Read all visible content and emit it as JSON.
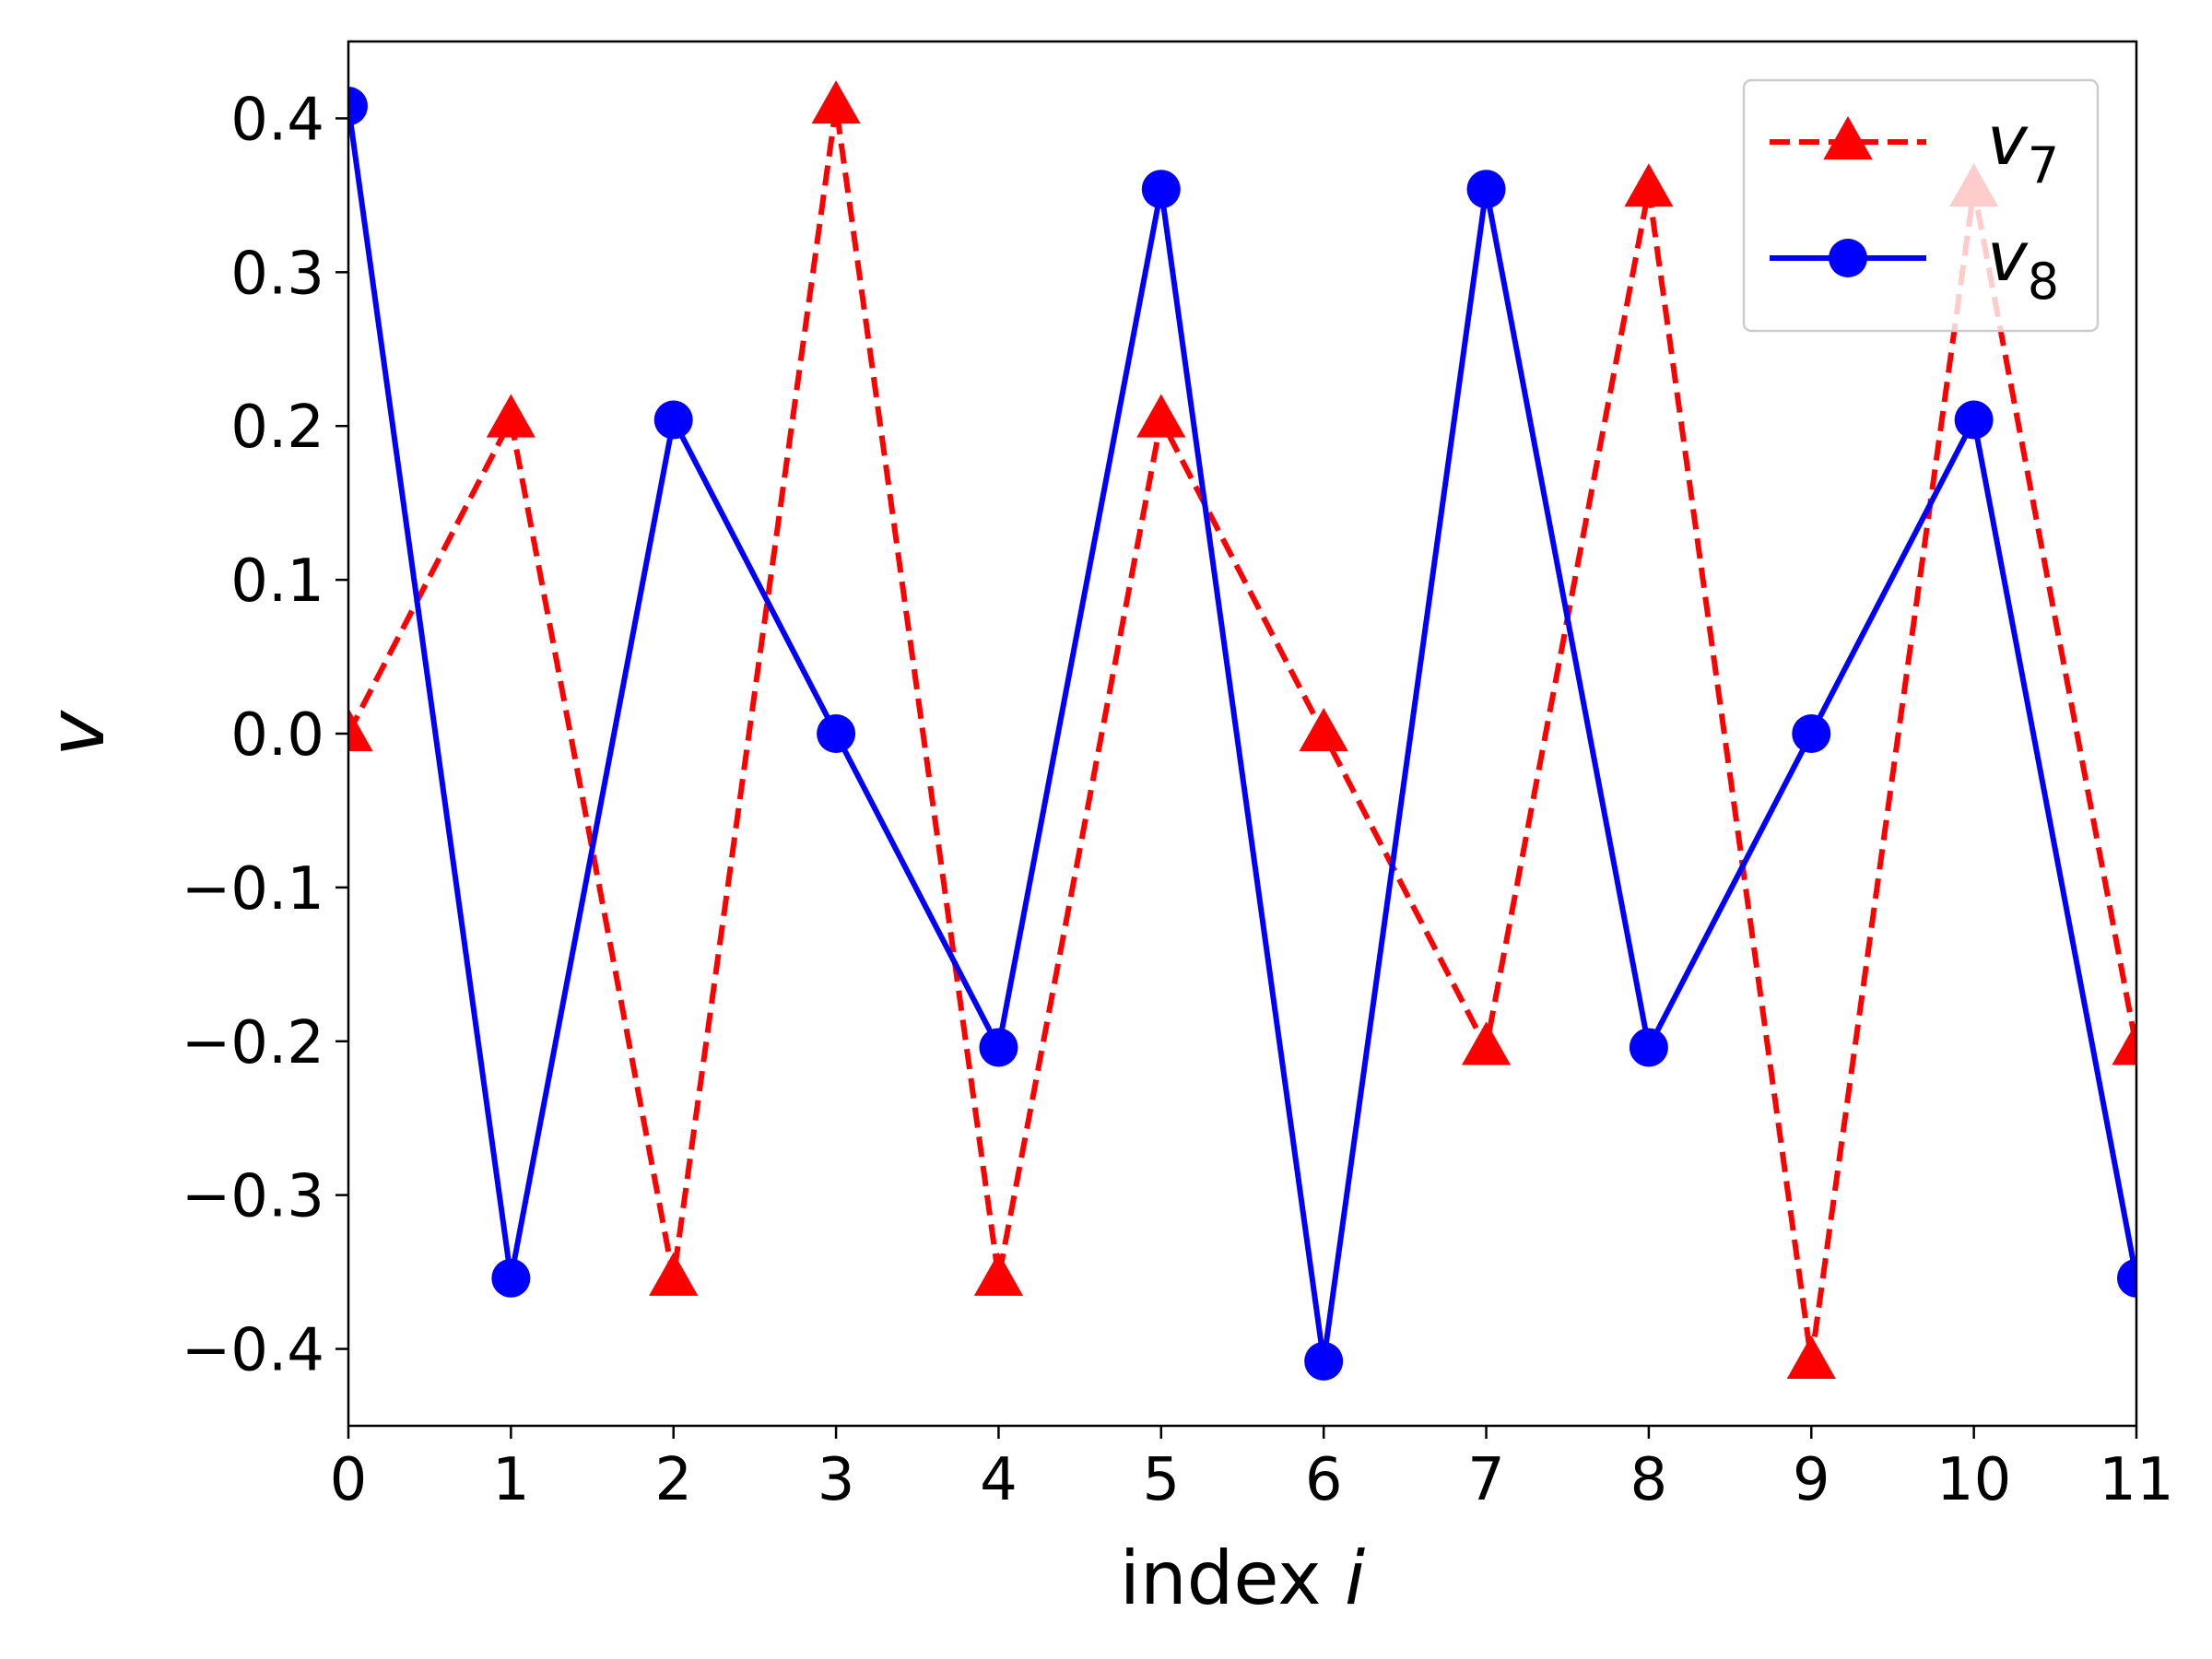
{
  "chart_data": {
    "type": "line",
    "x": [
      0,
      1,
      2,
      3,
      4,
      5,
      6,
      7,
      8,
      9,
      10,
      11
    ],
    "xticks": [
      "0",
      "1",
      "2",
      "3",
      "4",
      "5",
      "6",
      "7",
      "8",
      "9",
      "10",
      "11"
    ],
    "yticks": [
      "0.4",
      "0.3",
      "0.2",
      "0.1",
      "0.0",
      "−0.1",
      "−0.2",
      "−0.3",
      "−0.4"
    ],
    "ytick_values": [
      0.4,
      0.3,
      0.2,
      0.1,
      0.0,
      -0.1,
      -0.2,
      -0.3,
      -0.4
    ],
    "xlim": [
      0,
      11
    ],
    "ylim": [
      -0.45,
      0.45
    ],
    "xlabel": "index",
    "xlabel_var": "i",
    "ylabel": "v",
    "grid": false,
    "legend_position": "top-right",
    "series": [
      {
        "name_base": "v",
        "name_sub": "7",
        "color": "#ff0000",
        "line_style": "dashed",
        "marker": "triangle",
        "values": [
          0.0,
          0.204,
          -0.354,
          0.408,
          -0.354,
          0.204,
          0.0,
          -0.204,
          0.354,
          -0.408,
          0.354,
          -0.204
        ]
      },
      {
        "name_base": "v",
        "name_sub": "8",
        "color": "#0000ff",
        "line_style": "solid",
        "marker": "circle",
        "values": [
          0.408,
          -0.354,
          0.204,
          0.0,
          -0.204,
          0.354,
          -0.408,
          0.354,
          -0.204,
          0.0,
          0.204,
          -0.354
        ]
      }
    ]
  }
}
